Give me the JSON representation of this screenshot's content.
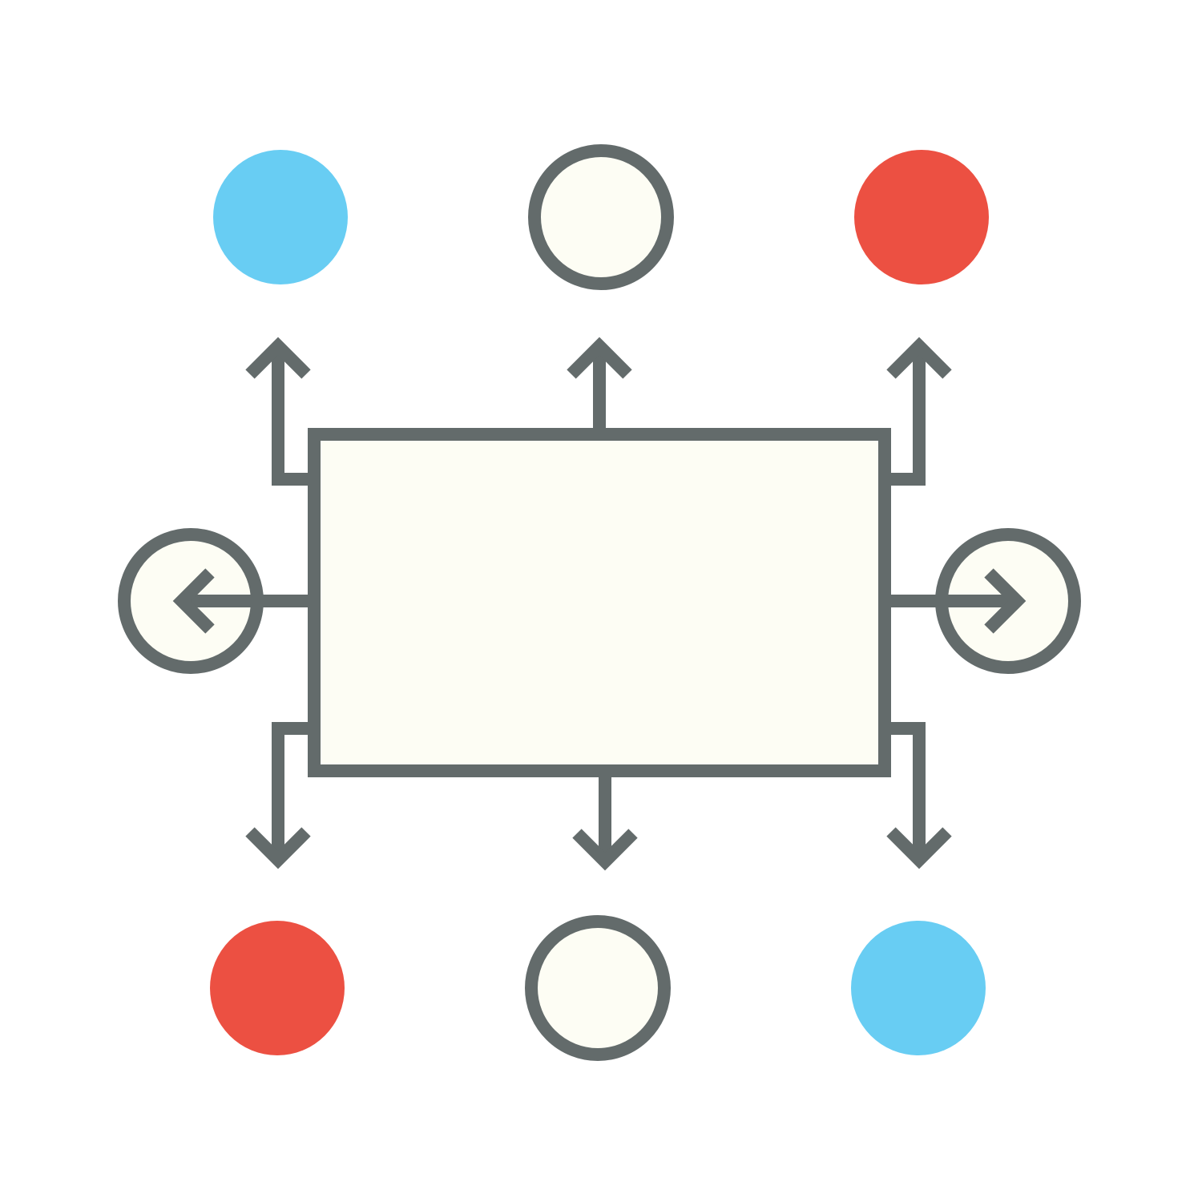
{
  "diagram": {
    "type": "central box with radiating arrows",
    "colors": {
      "background": "#ffffff",
      "stroke": "#636b6b",
      "fill_cream": "#fdfdf4",
      "blue": "#68cdf3",
      "red": "#ec5042"
    },
    "nodes": [
      {
        "name": "top-left-dot",
        "style": "filled",
        "color": "blue"
      },
      {
        "name": "top-center-dot",
        "style": "outlined",
        "color": "cream"
      },
      {
        "name": "top-right-dot",
        "style": "filled",
        "color": "red"
      },
      {
        "name": "left-dot",
        "style": "outlined",
        "color": "cream"
      },
      {
        "name": "right-dot",
        "style": "outlined",
        "color": "cream"
      },
      {
        "name": "bottom-left-dot",
        "style": "filled",
        "color": "red"
      },
      {
        "name": "bottom-center-dot",
        "style": "outlined",
        "color": "cream"
      },
      {
        "name": "bottom-right-dot",
        "style": "filled",
        "color": "blue"
      }
    ],
    "arrows": [
      {
        "name": "arrow-up-left",
        "direction": "up"
      },
      {
        "name": "arrow-up-center",
        "direction": "up"
      },
      {
        "name": "arrow-up-right",
        "direction": "up"
      },
      {
        "name": "arrow-left",
        "direction": "left"
      },
      {
        "name": "arrow-right",
        "direction": "right"
      },
      {
        "name": "arrow-down-left",
        "direction": "down"
      },
      {
        "name": "arrow-down-center",
        "direction": "down"
      },
      {
        "name": "arrow-down-right",
        "direction": "down"
      }
    ]
  }
}
